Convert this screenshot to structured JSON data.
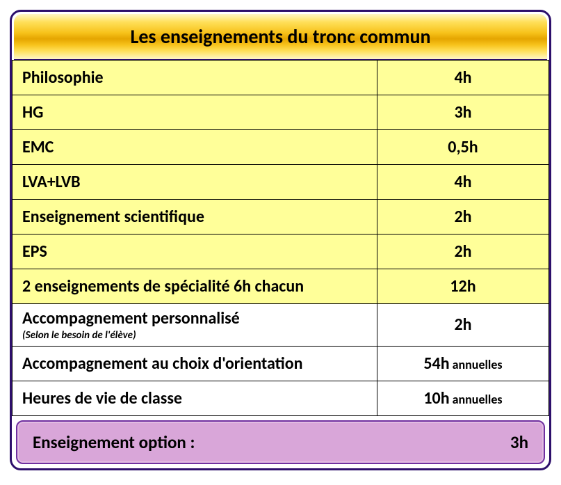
{
  "header": {
    "title": "Les enseignements du tronc commun"
  },
  "rows": [
    {
      "label": "Philosophie",
      "hours": "4h",
      "bg": "yellow"
    },
    {
      "label": "HG",
      "hours": "3h",
      "bg": "yellow"
    },
    {
      "label": "EMC",
      "hours": "0,5h",
      "bg": "yellow"
    },
    {
      "label": "LVA+LVB",
      "hours": "4h",
      "bg": "yellow"
    },
    {
      "label": "Enseignement scientifique",
      "hours": "2h",
      "bg": "yellow"
    },
    {
      "label": "EPS",
      "hours": "2h",
      "bg": "yellow"
    },
    {
      "label": "2 enseignements de spécialité 6h chacun",
      "hours": "12h",
      "bg": "yellow"
    },
    {
      "label": "Accompagnement personnalisé",
      "sublabel": "(Selon le besoin de l'élève)",
      "hours": "2h",
      "bg": "white"
    },
    {
      "label": "Accompagnement au choix d'orientation",
      "hours": "54h",
      "suffix": "annuelles",
      "bg": "white"
    },
    {
      "label": "Heures de vie de classe",
      "hours": "10h",
      "suffix": "annuelles",
      "bg": "white"
    }
  ],
  "option": {
    "label": "Enseignement option :",
    "hours": "3h"
  },
  "colors": {
    "border": "#2d0f6b",
    "yellow_row": "#ffff99",
    "white_row": "#ffffff",
    "option_bg": "#d9a6d9",
    "option_border": "#7030a0"
  }
}
